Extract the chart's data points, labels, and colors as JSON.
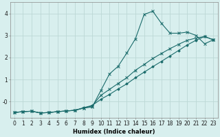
{
  "xlabel": "Humidex (Indice chaleur)",
  "background_color": "#d8efee",
  "grid_color": "#bcd8d5",
  "line_color": "#1a6b6b",
  "x_data": [
    0,
    1,
    2,
    3,
    4,
    5,
    6,
    7,
    8,
    9,
    10,
    11,
    12,
    13,
    14,
    15,
    16,
    17,
    18,
    19,
    20,
    21,
    22,
    23
  ],
  "line1_y": [
    -0.5,
    -0.46,
    -0.44,
    -0.52,
    -0.5,
    -0.46,
    -0.43,
    -0.4,
    -0.3,
    -0.25,
    0.5,
    1.25,
    1.6,
    2.2,
    2.85,
    3.95,
    4.1,
    3.55,
    3.1,
    3.1,
    3.15,
    3.0,
    2.62,
    2.8
  ],
  "line2_y": [
    -0.5,
    -0.46,
    -0.44,
    -0.52,
    -0.5,
    -0.46,
    -0.43,
    -0.4,
    -0.3,
    -0.2,
    0.28,
    0.55,
    0.82,
    1.08,
    1.42,
    1.68,
    1.95,
    2.18,
    2.4,
    2.6,
    2.78,
    2.88,
    2.95,
    2.8
  ],
  "line3_y": [
    -0.5,
    -0.46,
    -0.44,
    -0.52,
    -0.5,
    -0.46,
    -0.43,
    -0.4,
    -0.28,
    -0.18,
    0.1,
    0.32,
    0.57,
    0.8,
    1.08,
    1.33,
    1.58,
    1.82,
    2.07,
    2.32,
    2.57,
    2.78,
    2.95,
    2.8
  ],
  "ylim": [
    -0.75,
    4.5
  ],
  "xlim": [
    -0.5,
    23.5
  ],
  "yticks": [
    0,
    1,
    2,
    3,
    4
  ],
  "ytick_labels": [
    "-0",
    "1",
    "2",
    "3",
    "4"
  ],
  "xticks": [
    0,
    1,
    2,
    3,
    4,
    5,
    6,
    7,
    8,
    9,
    10,
    11,
    12,
    13,
    14,
    15,
    16,
    17,
    18,
    19,
    20,
    21,
    22,
    23
  ],
  "font_size": 5.5,
  "xlabel_fontsize": 6.0
}
